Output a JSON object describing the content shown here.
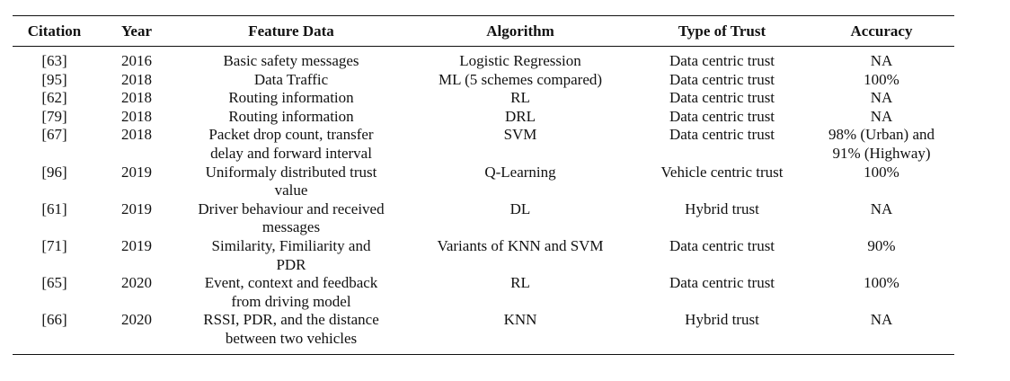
{
  "table": {
    "headers": [
      "Citation",
      "Year",
      "Feature Data",
      "Algorithm",
      "Type of Trust",
      "Accuracy"
    ],
    "rows": [
      {
        "citation": "[63]",
        "year": "2016",
        "feature": [
          "Basic safety messages"
        ],
        "algorithm": "Logistic Regression",
        "trust": "Data centric trust",
        "accuracy": [
          "NA"
        ]
      },
      {
        "citation": "[95]",
        "year": "2018",
        "feature": [
          "Data Traffic"
        ],
        "algorithm": "ML (5 schemes compared)",
        "trust": "Data centric trust",
        "accuracy": [
          "100%"
        ]
      },
      {
        "citation": "[62]",
        "year": "2018",
        "feature": [
          "Routing information"
        ],
        "algorithm": "RL",
        "trust": "Data centric trust",
        "accuracy": [
          "NA"
        ]
      },
      {
        "citation": "[79]",
        "year": "2018",
        "feature": [
          "Routing information"
        ],
        "algorithm": "DRL",
        "trust": "Data centric trust",
        "accuracy": [
          "NA"
        ]
      },
      {
        "citation": "[67]",
        "year": "2018",
        "feature": [
          "Packet drop count, transfer",
          "delay and forward interval"
        ],
        "algorithm": "SVM",
        "trust": "Data centric trust",
        "accuracy": [
          "98% (Urban) and",
          "91% (Highway)"
        ]
      },
      {
        "citation": "[96]",
        "year": "2019",
        "feature": [
          "Uniformaly distributed trust",
          "value"
        ],
        "algorithm": "Q-Learning",
        "trust": "Vehicle centric trust",
        "accuracy": [
          "100%"
        ]
      },
      {
        "citation": "[61]",
        "year": "2019",
        "feature": [
          "Driver behaviour and received",
          "messages"
        ],
        "algorithm": "DL",
        "trust": "Hybrid trust",
        "accuracy": [
          "NA"
        ]
      },
      {
        "citation": "[71]",
        "year": "2019",
        "feature": [
          "Similarity, Fimiliarity and",
          "PDR"
        ],
        "algorithm": "Variants of KNN and SVM",
        "trust": "Data centric trust",
        "accuracy": [
          "90%"
        ]
      },
      {
        "citation": "[65]",
        "year": "2020",
        "feature": [
          "Event, context and feedback",
          "from driving model"
        ],
        "algorithm": "RL",
        "trust": "Data centric trust",
        "accuracy": [
          "100%"
        ]
      },
      {
        "citation": "[66]",
        "year": "2020",
        "feature": [
          "RSSI, PDR, and the distance",
          "between two vehicles"
        ],
        "algorithm": "KNN",
        "trust": "Hybrid trust",
        "accuracy": [
          "NA"
        ]
      }
    ]
  }
}
